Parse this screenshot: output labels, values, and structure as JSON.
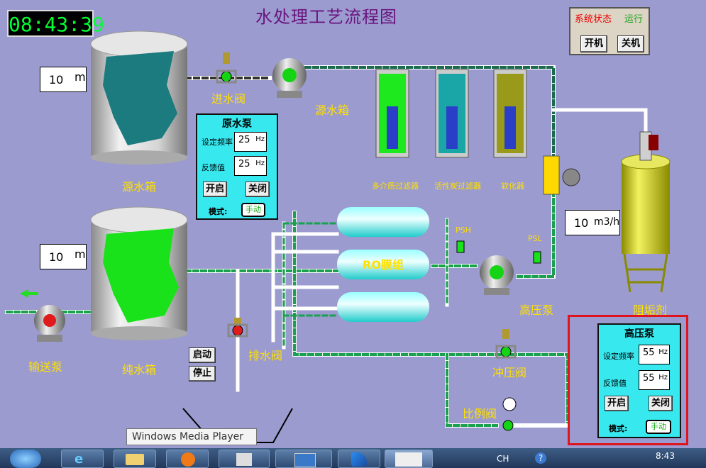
{
  "clock": "08:43:39",
  "title": "水处理工艺流程图",
  "system_status": {
    "label": "系统状态",
    "value": "运行",
    "start_label": "开机",
    "stop_label": "关机"
  },
  "source_tank": {
    "level_value": "10",
    "level_unit": "m",
    "label": "源水箱"
  },
  "inlet_valve": {
    "label": "进水阀"
  },
  "source_pump": {
    "label": "源水箱"
  },
  "raw_pump_panel": {
    "title": "原水泵",
    "set_freq_label": "设定频率",
    "set_freq_value": "25",
    "set_freq_unit": "Hz",
    "feedback_label": "反馈值",
    "feedback_value": "25",
    "feedback_unit": "Hz",
    "start_label": "开启",
    "stop_label": "关闭",
    "mode_label": "模式:",
    "mode_value": "手动"
  },
  "filters": [
    {
      "label": "多介质过滤器"
    },
    {
      "label": "活性炭过滤器"
    },
    {
      "label": "软化器"
    }
  ],
  "flow_meter": {
    "value": "10",
    "unit": "m3/h"
  },
  "antiscalant": {
    "label": "阻垢剂"
  },
  "ro_module": {
    "label": "RO膜组"
  },
  "sensors": {
    "psh": "PSH",
    "psl": "PSL"
  },
  "high_pressure_pump": {
    "label": "高压泵"
  },
  "pure_tank": {
    "level_value": "10",
    "level_unit": "m",
    "label": "纯水箱"
  },
  "transfer_pump": {
    "label": "输送泵"
  },
  "drain_valve": {
    "label": "排水阀"
  },
  "flush_valve": {
    "label": "冲压阀"
  },
  "ratio_valve": {
    "label": "比例阀"
  },
  "drain_controls": {
    "start_label": "启动",
    "stop_label": "停止"
  },
  "hp_pump_panel": {
    "title": "高压泵",
    "set_freq_label": "设定频率",
    "set_freq_value": "55",
    "set_freq_unit": "Hz",
    "feedback_label": "反馈值",
    "feedback_value": "55",
    "feedback_unit": "Hz",
    "start_label": "开启",
    "stop_label": "关闭",
    "mode_label": "模式:",
    "mode_value": "手动"
  },
  "tooltip": "Windows Media Player",
  "taskbar": {
    "lang": "CH",
    "time": "8:43"
  }
}
